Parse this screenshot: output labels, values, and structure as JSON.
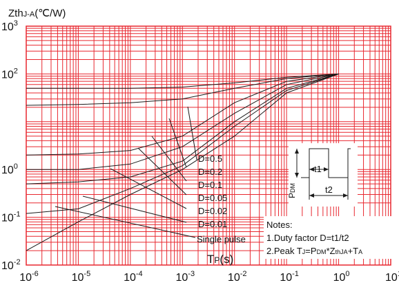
{
  "chart_data": {
    "type": "line",
    "title": "",
    "ylabel_main": "Zth",
    "ylabel_sub": "J-A",
    "ylabel_unit": "(℃/W)",
    "xlabel_main": "T",
    "xlabel_sub": "P",
    "xlabel_unit": "(s)",
    "x_scale": "log",
    "y_scale": "log",
    "xlim": [
      1e-06,
      10
    ],
    "ylim": [
      0.01,
      1000
    ],
    "grid": true,
    "colors": {
      "grid": "#e8272f",
      "curve": "#1a1a1a",
      "text": "#111111"
    },
    "x_ticks": [
      {
        "value": 1e-06,
        "base": "10",
        "exp": "-6"
      },
      {
        "value": 1e-05,
        "base": "10",
        "exp": "-5"
      },
      {
        "value": 0.0001,
        "base": "10",
        "exp": "-4"
      },
      {
        "value": 0.001,
        "base": "10",
        "exp": "-3"
      },
      {
        "value": 0.01,
        "base": "10",
        "exp": "-2"
      },
      {
        "value": 0.1,
        "base": "10",
        "exp": "-1"
      },
      {
        "value": 1,
        "base": "10",
        "exp": "0"
      },
      {
        "value": 10,
        "base": "10",
        "exp": "1"
      }
    ],
    "y_ticks": [
      {
        "value": 0.01,
        "base": "10",
        "exp": "-2"
      },
      {
        "value": 0.1,
        "base": "10",
        "exp": "-1"
      },
      {
        "value": 1,
        "base": "10",
        "exp": "0"
      },
      {
        "value": 100,
        "base": "10",
        "exp": "2"
      },
      {
        "value": 1000,
        "base": "10",
        "exp": "3"
      }
    ],
    "series": [
      {
        "name": "D=0.5",
        "x": [
          1e-06,
          1e-05,
          0.0001,
          0.001,
          0.01,
          0.1,
          1
        ],
        "y": [
          50,
          50,
          50,
          53,
          65,
          85,
          100
        ]
      },
      {
        "name": "D=0.2",
        "x": [
          1e-06,
          1e-05,
          0.0001,
          0.001,
          0.01,
          0.1,
          1
        ],
        "y": [
          22,
          23,
          25,
          30,
          50,
          80,
          100
        ]
      },
      {
        "name": "D=0.1",
        "x": [
          1e-06,
          1e-05,
          0.0001,
          0.001,
          0.01,
          0.1,
          1
        ],
        "y": [
          2,
          2.1,
          2.5,
          5,
          25,
          70,
          100
        ]
      },
      {
        "name": "D=0.05",
        "x": [
          1e-06,
          1e-05,
          0.0001,
          0.001,
          0.01,
          0.1,
          1
        ],
        "y": [
          1,
          1,
          1.3,
          3,
          15,
          60,
          100
        ]
      },
      {
        "name": "D=0.02",
        "x": [
          1e-06,
          1e-05,
          0.0001,
          0.001,
          0.01,
          0.1,
          1
        ],
        "y": [
          0.5,
          0.55,
          0.7,
          1.5,
          10,
          50,
          100
        ]
      },
      {
        "name": "D=0.01",
        "x": [
          1e-06,
          1e-05,
          0.0001,
          0.001,
          0.01,
          0.1,
          1
        ],
        "y": [
          0.12,
          0.15,
          0.4,
          1.2,
          8,
          45,
          100
        ]
      },
      {
        "name": "Single pulse",
        "x": [
          1e-06,
          1e-05,
          0.0001,
          0.001,
          0.01,
          0.1,
          1
        ],
        "y": [
          0.02,
          0.08,
          0.3,
          1,
          5,
          40,
          100
        ]
      }
    ],
    "curve_labels": [
      "D=0.5",
      "D=0.2",
      "D=0.1",
      "D=0.05",
      "D=0.02",
      "D=0.01",
      "Single pulse"
    ],
    "notes": {
      "title": "Notes:",
      "line1": "1.Duty factor D=t1/t2",
      "line2_a": "2.Peak T",
      "line2_b": "J",
      "line2_c": "=P",
      "line2_d": "DM",
      "line2_e": "*Z",
      "line2_f": "thJA",
      "line2_g": "+T",
      "line2_h": "A"
    },
    "inset": {
      "t1": "t1",
      "t2": "t2",
      "pdm_main": "P",
      "pdm_sub": "DM"
    }
  }
}
